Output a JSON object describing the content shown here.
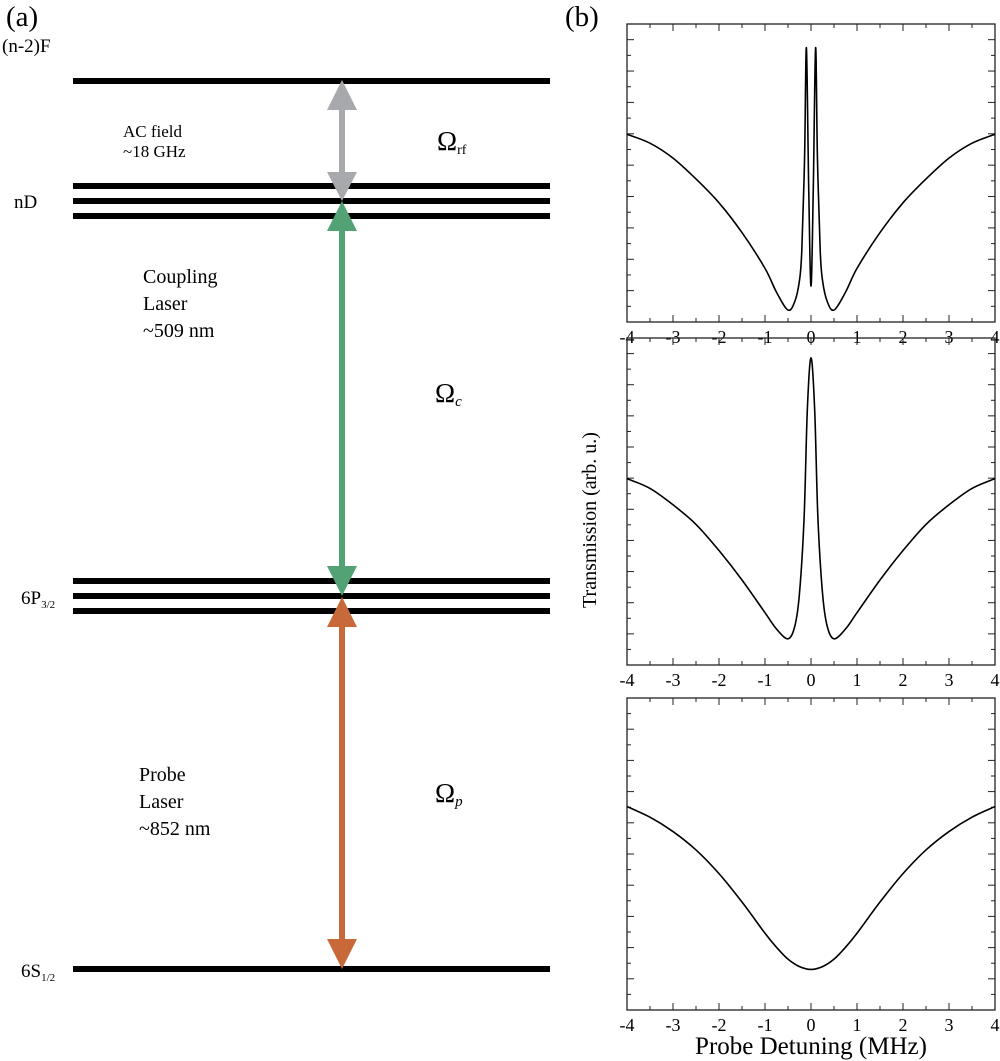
{
  "panel_a": {
    "label": "(a)",
    "levels": [
      {
        "name": "(n-2)F",
        "sub": ""
      },
      {
        "name": "nD",
        "sub": ""
      },
      {
        "name": "6P",
        "sub": "3/2"
      },
      {
        "name": "6S",
        "sub": "1/2"
      }
    ],
    "transitions": [
      {
        "lines": [
          "AC field",
          "~18 GHz"
        ],
        "symbol": "Ω",
        "symbol_sub": "rf",
        "color": "#a7a9ac"
      },
      {
        "lines": [
          "Coupling",
          "Laser",
          "~509 nm"
        ],
        "symbol": "Ω",
        "symbol_sub": "c",
        "color": "#52a275"
      },
      {
        "lines": [
          "Probe",
          "Laser",
          "~852 nm"
        ],
        "symbol": "Ω",
        "symbol_sub": "p",
        "color": "#c8693a"
      }
    ]
  },
  "panel_b": {
    "label": "(b)"
  },
  "chart_data": [
    {
      "type": "line",
      "title": "",
      "xlabel": "Probe Detuning (MHz)",
      "ylabel": "Transmission (arb. u.)",
      "xlim": [
        -4,
        4
      ],
      "ylim": [
        0,
        1
      ],
      "xticks": [
        "-4",
        "-3",
        "-2",
        "-1",
        "0",
        "1",
        "2",
        "3",
        "4"
      ],
      "grid": false,
      "x": [
        -4,
        -3.5,
        -3,
        -2.5,
        -2,
        -1.5,
        -1,
        -0.75,
        -0.5,
        -0.35,
        -0.25,
        -0.2,
        -0.14,
        -0.1,
        -0.05,
        0,
        0.05,
        0.1,
        0.14,
        0.2,
        0.25,
        0.35,
        0.5,
        0.75,
        1,
        1.5,
        2,
        2.5,
        3,
        3.5,
        4
      ],
      "y": [
        0.63,
        0.6,
        0.55,
        0.48,
        0.4,
        0.3,
        0.18,
        0.1,
        0.04,
        0.07,
        0.14,
        0.24,
        0.55,
        0.92,
        0.45,
        0.12,
        0.45,
        0.92,
        0.55,
        0.24,
        0.14,
        0.07,
        0.04,
        0.1,
        0.18,
        0.3,
        0.4,
        0.48,
        0.55,
        0.6,
        0.63
      ]
    },
    {
      "type": "line",
      "title": "",
      "xlabel": "Probe Detuning (MHz)",
      "ylabel": "Transmission (arb. u.)",
      "xlim": [
        -4,
        4
      ],
      "ylim": [
        0,
        1
      ],
      "xticks": [
        "-4",
        "-3",
        "-2",
        "-1",
        "0",
        "1",
        "2",
        "3",
        "4"
      ],
      "grid": false,
      "x": [
        -4,
        -3.5,
        -3,
        -2.5,
        -2,
        -1.5,
        -1,
        -0.75,
        -0.5,
        -0.35,
        -0.25,
        -0.15,
        -0.08,
        0,
        0.08,
        0.15,
        0.25,
        0.35,
        0.5,
        0.75,
        1,
        1.5,
        2,
        2.5,
        3,
        3.5,
        4
      ],
      "y": [
        0.57,
        0.54,
        0.49,
        0.43,
        0.35,
        0.26,
        0.16,
        0.11,
        0.08,
        0.12,
        0.22,
        0.45,
        0.78,
        0.94,
        0.78,
        0.45,
        0.22,
        0.12,
        0.08,
        0.11,
        0.16,
        0.26,
        0.35,
        0.43,
        0.49,
        0.54,
        0.57
      ]
    },
    {
      "type": "line",
      "title": "",
      "xlabel": "Probe Detuning (MHz)",
      "ylabel": "Transmission (arb. u.)",
      "xlim": [
        -4,
        4
      ],
      "ylim": [
        0,
        1
      ],
      "xticks": [
        "-4",
        "-3",
        "-2",
        "-1",
        "0",
        "1",
        "2",
        "3",
        "4"
      ],
      "grid": false,
      "x": [
        -4,
        -3.5,
        -3,
        -2.5,
        -2,
        -1.5,
        -1,
        -0.75,
        -0.5,
        -0.25,
        0,
        0.25,
        0.5,
        0.75,
        1,
        1.5,
        2,
        2.5,
        3,
        3.5,
        4
      ],
      "y": [
        0.652,
        0.618,
        0.572,
        0.513,
        0.437,
        0.346,
        0.246,
        0.201,
        0.163,
        0.139,
        0.13,
        0.139,
        0.163,
        0.201,
        0.246,
        0.346,
        0.437,
        0.513,
        0.572,
        0.618,
        0.652
      ]
    }
  ]
}
